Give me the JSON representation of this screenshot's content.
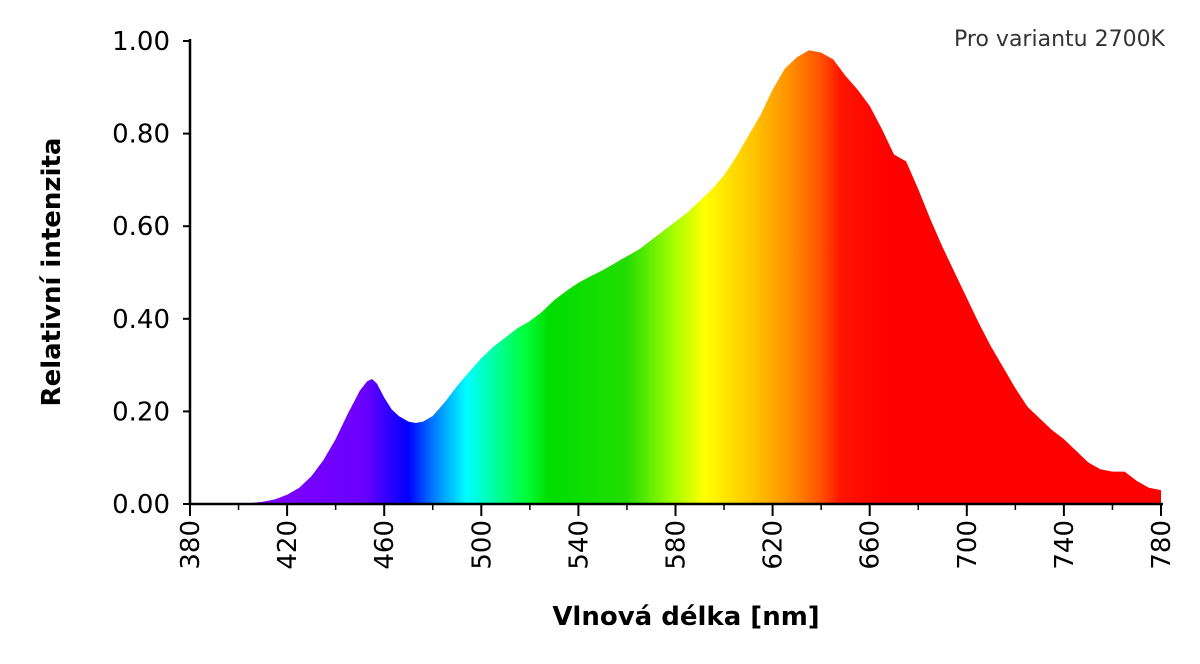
{
  "chart_data": {
    "type": "area",
    "title": "",
    "annotation": "Pro variantu 2700K",
    "xlabel": "Vlnová délka [nm]",
    "ylabel": "Relativní intenzita",
    "xlim": [
      380,
      780
    ],
    "ylim": [
      0,
      1.0
    ],
    "x_ticks": [
      380,
      420,
      460,
      500,
      540,
      580,
      620,
      660,
      700,
      740,
      780
    ],
    "y_ticks": [
      "0.00",
      "0.20",
      "0.40",
      "0.60",
      "0.80",
      "1.00"
    ],
    "grid": false,
    "legend": false,
    "fill": "visible-spectrum gradient (violet to red)",
    "series": [
      {
        "x": [
          380,
          400,
          405,
          410,
          415,
          420,
          425,
          430,
          435,
          440,
          445,
          450,
          453,
          455,
          457,
          460,
          463,
          466,
          470,
          473,
          476,
          480,
          485,
          490,
          495,
          500,
          505,
          510,
          515,
          520,
          525,
          530,
          535,
          540,
          545,
          550,
          555,
          560,
          565,
          570,
          575,
          580,
          585,
          590,
          595,
          600,
          605,
          610,
          615,
          620,
          625,
          630,
          635,
          640,
          645,
          650,
          655,
          660,
          665,
          670,
          675,
          680,
          685,
          690,
          695,
          700,
          705,
          710,
          715,
          720,
          725,
          730,
          735,
          740,
          745,
          750,
          755,
          760,
          765,
          770,
          775,
          780
        ],
        "y": [
          0,
          0,
          0.002,
          0.005,
          0.01,
          0.02,
          0.035,
          0.06,
          0.095,
          0.14,
          0.195,
          0.245,
          0.265,
          0.27,
          0.26,
          0.23,
          0.205,
          0.19,
          0.178,
          0.175,
          0.178,
          0.19,
          0.22,
          0.255,
          0.285,
          0.315,
          0.34,
          0.36,
          0.38,
          0.395,
          0.415,
          0.44,
          0.46,
          0.478,
          0.492,
          0.505,
          0.52,
          0.535,
          0.55,
          0.57,
          0.59,
          0.61,
          0.63,
          0.655,
          0.68,
          0.71,
          0.75,
          0.795,
          0.84,
          0.895,
          0.94,
          0.965,
          0.98,
          0.975,
          0.96,
          0.925,
          0.895,
          0.86,
          0.81,
          0.755,
          0.74,
          0.68,
          0.615,
          0.555,
          0.5,
          0.445,
          0.39,
          0.34,
          0.295,
          0.25,
          0.21,
          0.185,
          0.16,
          0.14,
          0.115,
          0.09,
          0.075,
          0.07,
          0.07,
          0.05,
          0.035,
          0.03
        ]
      }
    ]
  }
}
